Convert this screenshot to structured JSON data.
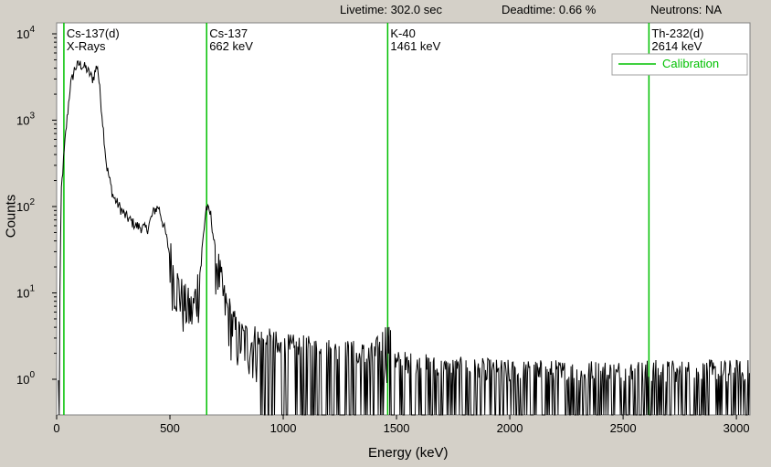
{
  "status": {
    "livetime": "Livetime: 302.0 sec",
    "deadtime": "Deadtime: 0.66 %",
    "neutrons": "Neutrons: NA"
  },
  "colors": {
    "background": "#d4d0c8",
    "plot_bg": "#ffffff",
    "line": "#000000",
    "calibration": "#00c000"
  },
  "chart_data": {
    "type": "line",
    "xlabel": "Energy (keV)",
    "ylabel": "Counts",
    "xlim": [
      0,
      3060
    ],
    "ylim": [
      0.3,
      20000
    ],
    "yscale": "log",
    "x_ticks": [
      "0",
      "500",
      "1000",
      "1500",
      "2000",
      "2500",
      "3000"
    ],
    "y_ticks": [
      {
        "base": "10",
        "exp": "0",
        "value": 1
      },
      {
        "base": "10",
        "exp": "1",
        "value": 10
      },
      {
        "base": "10",
        "exp": "2",
        "value": 100
      },
      {
        "base": "10",
        "exp": "3",
        "value": 1000
      },
      {
        "base": "10",
        "exp": "4",
        "value": 10000
      }
    ],
    "grid": false,
    "legend": {
      "position": "top-right",
      "entries": [
        {
          "label": "Calibration"
        }
      ]
    },
    "markers": [
      {
        "energy": 32,
        "line1": "Cs-137(d)",
        "line2": "X-Rays"
      },
      {
        "energy": 662,
        "line1": "Cs-137",
        "line2": "662 keV"
      },
      {
        "energy": 1461,
        "line1": "K-40",
        "line2": "1461 keV"
      },
      {
        "energy": 2614,
        "line1": "Th-232(d)",
        "line2": "2614 keV"
      }
    ],
    "spectrum_envelope": {
      "energy": [
        10,
        20,
        40,
        60,
        80,
        100,
        130,
        160,
        180,
        200,
        220,
        250,
        300,
        350,
        400,
        430,
        450,
        480,
        520,
        560,
        600,
        630,
        660,
        680,
        700,
        740,
        800,
        900,
        1000,
        1200,
        1400,
        1460,
        1500,
        1700,
        2000,
        2500,
        3000,
        3060
      ],
      "counts": [
        0.8,
        150,
        700,
        2500,
        4000,
        4500,
        4000,
        3000,
        4500,
        1200,
        300,
        130,
        80,
        60,
        55,
        90,
        100,
        50,
        15,
        8,
        6,
        15,
        100,
        80,
        30,
        8,
        3,
        2.5,
        2,
        1.8,
        1.6,
        3,
        1.3,
        1.1,
        1,
        1,
        1,
        1
      ]
    }
  }
}
